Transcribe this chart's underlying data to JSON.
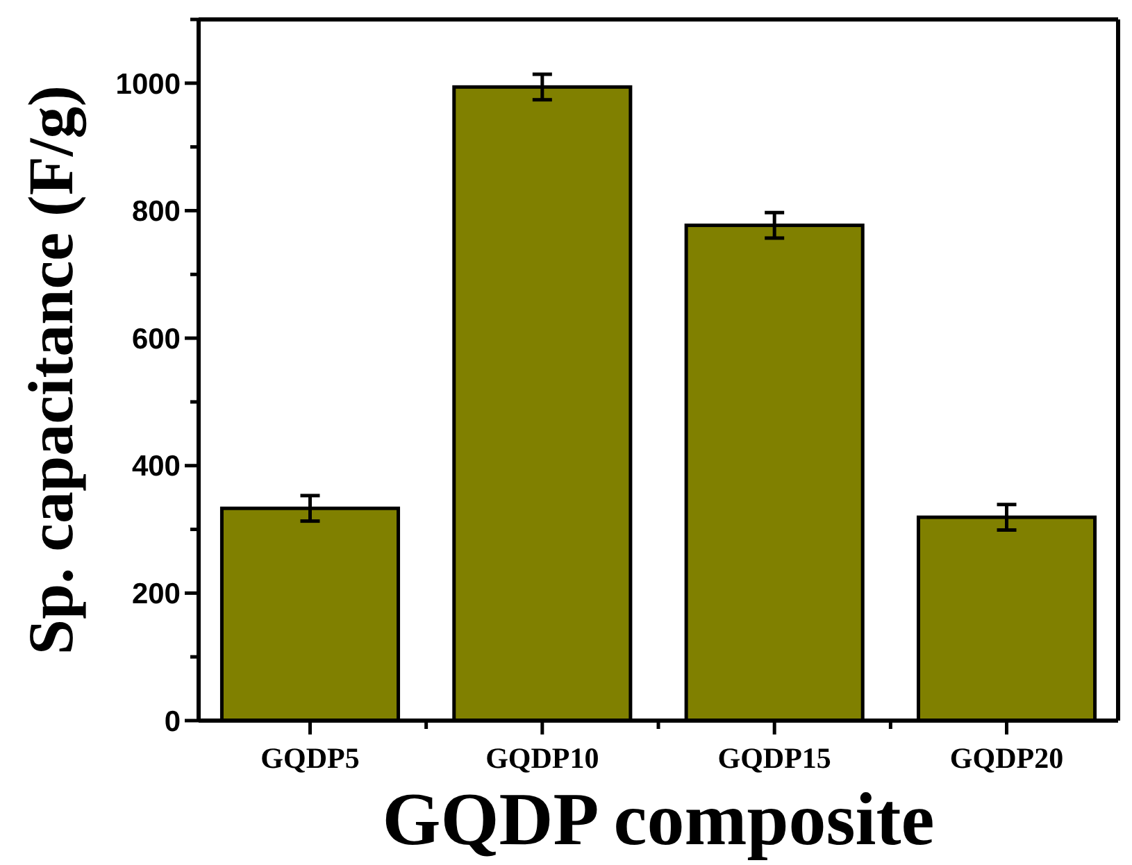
{
  "chart_data": {
    "type": "bar",
    "xlabel": "GQDP composite",
    "ylabel": "Sp. capacitance (F/g)",
    "categories": [
      "GQDP5",
      "GQDP10",
      "GQDP15",
      "GQDP20"
    ],
    "values": [
      333,
      994,
      777,
      319
    ],
    "errors": [
      20,
      20,
      20,
      20
    ],
    "color": "#808000",
    "ylim": [
      0,
      1100
    ],
    "yticks": [
      0,
      200,
      400,
      600,
      800,
      1000
    ],
    "grid": false
  }
}
